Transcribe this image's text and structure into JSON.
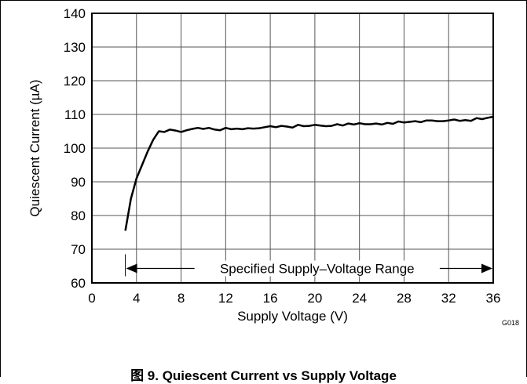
{
  "chart_data": {
    "type": "line",
    "xlabel": "Supply Voltage (V)",
    "ylabel": "Quiescent Current (µA)",
    "xlim": [
      0,
      36
    ],
    "ylim": [
      60,
      140
    ],
    "xticks": [
      "0",
      "4",
      "8",
      "12",
      "16",
      "20",
      "24",
      "28",
      "32",
      "36"
    ],
    "yticks": [
      "60",
      "70",
      "80",
      "90",
      "100",
      "110",
      "120",
      "130",
      "140"
    ],
    "grid": true,
    "figure_id": "G018",
    "annotation": {
      "text": "Specified Supply–Voltage Range",
      "x_start": 3,
      "x_end": 36,
      "y": 65
    },
    "series": [
      {
        "x": [
          3,
          3.5,
          4,
          4.5,
          5,
          5.5,
          6,
          6.5,
          7,
          7.5,
          8,
          8.5,
          9,
          9.5,
          10,
          10.5,
          11,
          11.5,
          12,
          12.5,
          13,
          13.5,
          14,
          14.5,
          15,
          15.5,
          16,
          16.5,
          17,
          17.5,
          18,
          18.5,
          19,
          19.5,
          20,
          20.5,
          21,
          21.5,
          22,
          22.5,
          23,
          23.5,
          24,
          24.5,
          25,
          25.5,
          26,
          26.5,
          27,
          27.5,
          28,
          28.5,
          29,
          29.5,
          30,
          30.5,
          31,
          31.5,
          32,
          32.5,
          33,
          33.5,
          34,
          34.5,
          35,
          35.5,
          36
        ],
        "values": [
          75.5,
          85,
          91,
          95,
          99,
          102.5,
          105,
          104.8,
          105.5,
          105.2,
          104.8,
          105.3,
          105.7,
          106,
          105.7,
          106,
          105.5,
          105.3,
          106,
          105.6,
          105.8,
          105.6,
          105.9,
          105.8,
          105.9,
          106.2,
          106.5,
          106.2,
          106.6,
          106.4,
          106.1,
          106.9,
          106.5,
          106.6,
          106.9,
          106.7,
          106.5,
          106.6,
          107.1,
          106.7,
          107.3,
          107,
          107.4,
          107.1,
          107.1,
          107.3,
          107,
          107.5,
          107.2,
          107.9,
          107.6,
          107.8,
          108,
          107.7,
          108.2,
          108.2,
          108,
          108,
          108.2,
          108.5,
          108.1,
          108.3,
          108.1,
          108.9,
          108.6,
          109,
          109.3
        ]
      }
    ]
  },
  "caption": "图 9. Quiescent Current vs Supply Voltage"
}
